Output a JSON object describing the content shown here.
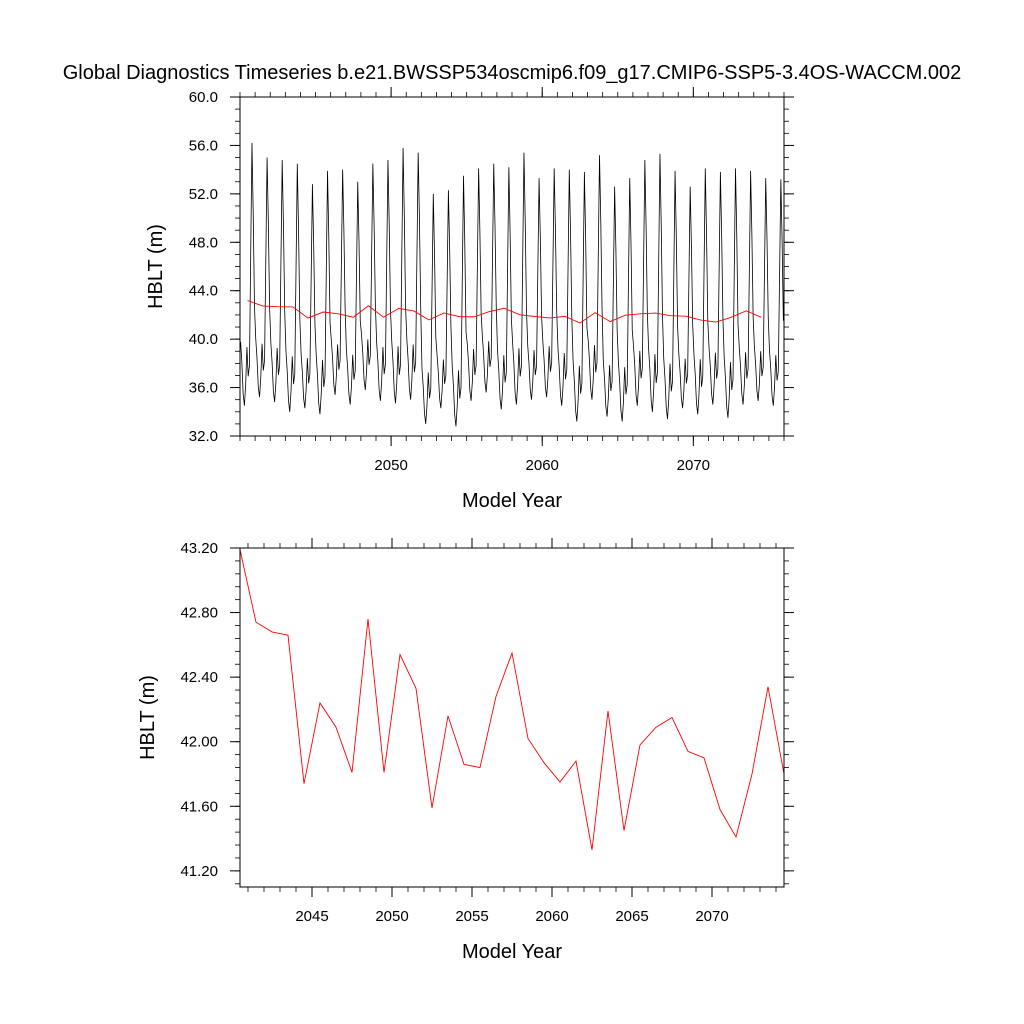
{
  "title": "Global Diagnostics Timeseries b.e21.BWSSP534oscmip6.f09_g17.CMIP6-SSP5-3.4OS-WACCM.002",
  "colors": {
    "monthly": "#000000",
    "annual": "#ff0000",
    "axis": "#000000"
  },
  "chart_data": [
    {
      "type": "line",
      "xlabel": "Model Year",
      "ylabel": "HBLT (m)",
      "xlim": [
        2040.0,
        2076.0
      ],
      "ylim": [
        32.0,
        60.0
      ],
      "xticks": [
        2050,
        2060,
        2070
      ],
      "xtick_labels": [
        "2050",
        "2060",
        "2070"
      ],
      "yticks": [
        32,
        36,
        40,
        44,
        48,
        52,
        56,
        60
      ],
      "ytick_labels": [
        "32.0",
        "36.0",
        "40.0",
        "44.0",
        "48.0",
        "52.0",
        "56.0",
        "60.0"
      ],
      "series": [
        {
          "role": "monthly",
          "x_start": 2040.042,
          "x_step": 0.08333,
          "seasonal_cycle": [
            39.4,
            37.8,
            35.5,
            34.6,
            36.2,
            39.0,
            36.8,
            37.6,
            46.0,
            54.3,
            49.0,
            42.0
          ],
          "peaks": [
            56.2,
            55.0,
            54.8,
            54.5,
            52.8,
            53.9,
            54.0,
            53.0,
            54.5,
            54.8,
            55.8,
            55.4,
            52.0,
            52.3,
            53.5,
            54.1,
            54.5,
            54.2,
            55.4,
            53.3,
            54.1,
            54.0,
            53.8,
            55.2,
            52.6,
            53.3,
            54.8,
            55.3,
            53.9,
            52.6,
            54.1,
            53.8,
            54.1,
            53.9,
            53.3,
            53.2
          ],
          "troughs": [
            34.5,
            35.2,
            34.8,
            34.0,
            34.3,
            33.8,
            35.4,
            34.6,
            35.8,
            34.9,
            34.7,
            35.0,
            33.0,
            34.3,
            32.8,
            34.9,
            35.6,
            34.2,
            34.6,
            35.0,
            35.2,
            34.5,
            33.2,
            35.0,
            33.6,
            33.2,
            34.5,
            34.0,
            33.4,
            34.3,
            33.8,
            34.6,
            33.5,
            34.6,
            34.9,
            34.5
          ]
        },
        {
          "role": "annual",
          "x": [
            2040.5,
            2041.5,
            2042.5,
            2043.5,
            2044.5,
            2045.5,
            2046.5,
            2047.5,
            2048.5,
            2049.5,
            2050.5,
            2051.5,
            2052.5,
            2053.5,
            2054.5,
            2055.5,
            2056.5,
            2057.5,
            2058.5,
            2059.5,
            2060.5,
            2061.5,
            2062.5,
            2063.5,
            2064.5,
            2065.5,
            2066.5,
            2067.5,
            2068.5,
            2069.5,
            2070.5,
            2071.5,
            2072.5,
            2073.5,
            2074.5
          ],
          "values": [
            43.19,
            42.74,
            42.68,
            42.66,
            41.74,
            42.24,
            42.09,
            41.81,
            42.76,
            41.81,
            42.54,
            42.33,
            41.59,
            42.16,
            41.86,
            41.84,
            42.28,
            42.55,
            42.02,
            41.87,
            41.75,
            41.88,
            41.33,
            42.19,
            41.45,
            41.98,
            42.09,
            42.15,
            41.94,
            41.9,
            41.58,
            41.41,
            41.8,
            42.34,
            41.8
          ]
        }
      ]
    },
    {
      "type": "line",
      "xlabel": "Model Year",
      "ylabel": "HBLT (m)",
      "xlim": [
        2040.5,
        2074.5
      ],
      "ylim": [
        41.1,
        43.2
      ],
      "xticks": [
        2045,
        2050,
        2055,
        2060,
        2065,
        2070
      ],
      "xtick_labels": [
        "2045",
        "2050",
        "2055",
        "2060",
        "2065",
        "2070"
      ],
      "yticks": [
        41.2,
        41.6,
        42.0,
        42.4,
        42.8,
        43.2
      ],
      "ytick_labels": [
        "41.20",
        "41.60",
        "42.00",
        "42.40",
        "42.80",
        "43.20"
      ],
      "series": [
        {
          "role": "annual",
          "x": [
            2040.5,
            2041.5,
            2042.5,
            2043.5,
            2044.5,
            2045.5,
            2046.5,
            2047.5,
            2048.5,
            2049.5,
            2050.5,
            2051.5,
            2052.5,
            2053.5,
            2054.5,
            2055.5,
            2056.5,
            2057.5,
            2058.5,
            2059.5,
            2060.5,
            2061.5,
            2062.5,
            2063.5,
            2064.5,
            2065.5,
            2066.5,
            2067.5,
            2068.5,
            2069.5,
            2070.5,
            2071.5,
            2072.5,
            2073.5,
            2074.5
          ],
          "values": [
            43.19,
            42.74,
            42.68,
            42.66,
            41.74,
            42.24,
            42.09,
            41.81,
            42.76,
            41.81,
            42.54,
            42.33,
            41.59,
            42.16,
            41.86,
            41.84,
            42.28,
            42.55,
            42.02,
            41.87,
            41.75,
            41.88,
            41.33,
            42.19,
            41.45,
            41.98,
            42.09,
            42.15,
            41.94,
            41.9,
            41.58,
            41.41,
            41.8,
            42.34,
            41.8
          ]
        }
      ]
    }
  ]
}
